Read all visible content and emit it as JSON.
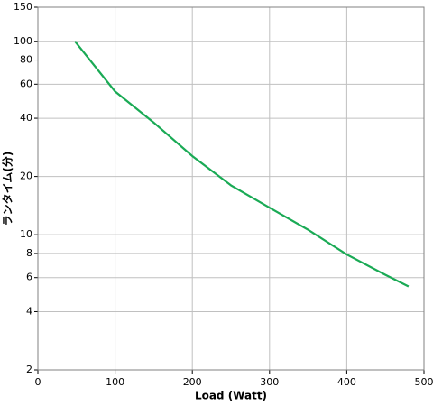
{
  "chart_data": {
    "type": "line",
    "x_label": "Load (Watt)",
    "y_label": "ランタイム(分)",
    "x": [
      48,
      100,
      150,
      200,
      250,
      300,
      350,
      400,
      450,
      480
    ],
    "series": [
      {
        "name": "Runtime",
        "color": "#1aaa55",
        "values": [
          100,
          55,
          38,
          25.5,
          18,
          13.8,
          10.6,
          7.9,
          6.2,
          5.4
        ]
      }
    ],
    "xlim": [
      0,
      500
    ],
    "xticks": [
      0,
      100,
      200,
      300,
      400,
      500
    ],
    "ylim": [
      2,
      150
    ],
    "yticks": [
      2,
      4,
      6,
      8,
      10,
      20,
      40,
      60,
      80,
      100,
      150
    ],
    "yscale": "log",
    "grid": true
  }
}
